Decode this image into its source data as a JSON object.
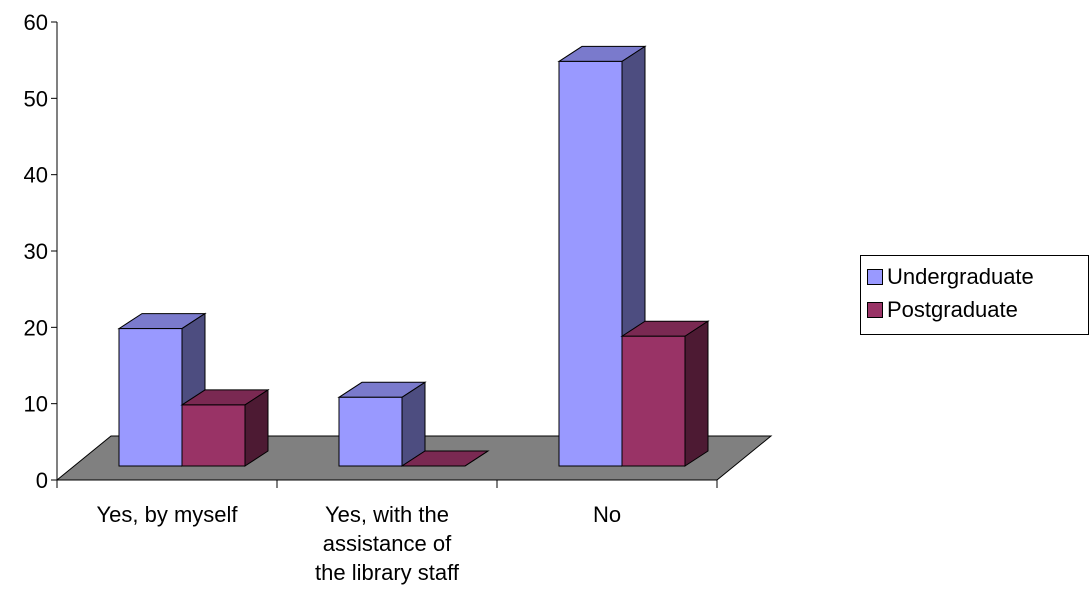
{
  "chart_data": {
    "type": "bar",
    "categories": [
      [
        "Yes, by myself"
      ],
      [
        "Yes, with the",
        "assistance of",
        "the library staff"
      ],
      [
        "No"
      ]
    ],
    "series": [
      {
        "name": "Undergraduate",
        "values": [
          18,
          9,
          53
        ],
        "color": "#9999ff"
      },
      {
        "name": "Postgraduate",
        "values": [
          8,
          0,
          17
        ],
        "color": "#993366"
      }
    ],
    "ylim": [
      0,
      60
    ],
    "yticks": [
      0,
      10,
      20,
      30,
      40,
      50,
      60
    ],
    "grid": false,
    "legend_position": "right",
    "floor_color": "#808080"
  }
}
